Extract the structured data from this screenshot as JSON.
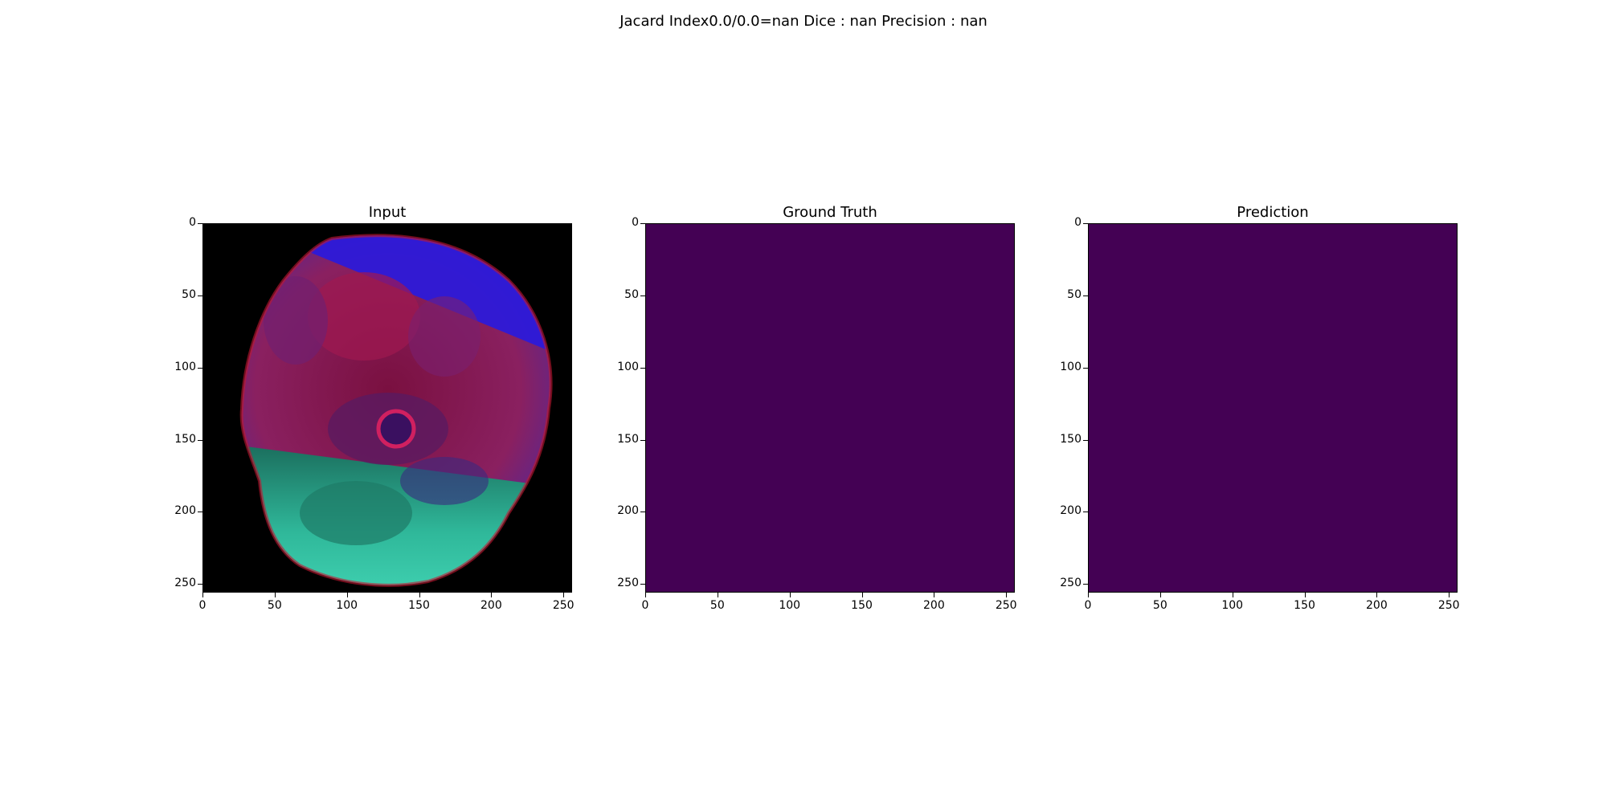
{
  "figure": {
    "suptitle": "Jacard Index0.0/0.0=nan Dice : nan Precision : nan"
  },
  "panels": [
    {
      "title": "Input",
      "kind": "mri-image"
    },
    {
      "title": "Ground Truth",
      "kind": "mask",
      "fill_color": "#440154"
    },
    {
      "title": "Prediction",
      "kind": "mask",
      "fill_color": "#440154"
    }
  ],
  "axis": {
    "xlim": [
      0,
      256
    ],
    "ylim": [
      256,
      0
    ],
    "x_ticks": [
      0,
      50,
      100,
      150,
      200,
      250
    ],
    "y_ticks": [
      0,
      50,
      100,
      150,
      200,
      250
    ],
    "x_tick_labels": [
      "0",
      "50",
      "100",
      "150",
      "200",
      "250"
    ],
    "y_tick_labels": [
      "0",
      "50",
      "100",
      "150",
      "200",
      "250"
    ]
  }
}
